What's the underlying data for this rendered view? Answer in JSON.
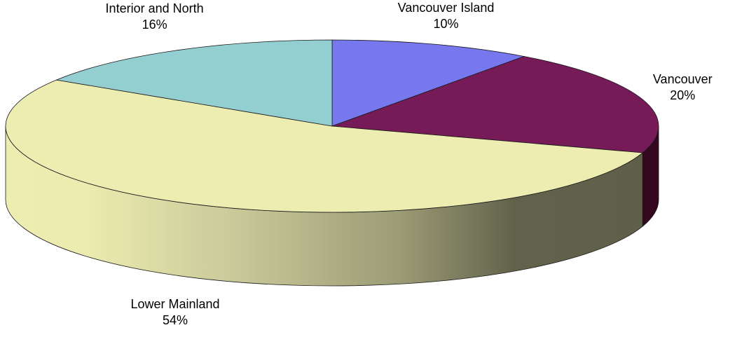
{
  "chart_data": {
    "type": "pie",
    "style": "3d-exploded-none",
    "categories": [
      "Vancouver Island",
      "Vancouver",
      "Lower Mainland",
      "Interior and North"
    ],
    "values": [
      10,
      20,
      54,
      16
    ],
    "labels": [
      "10%",
      "20%",
      "54%",
      "16%"
    ],
    "colors": [
      "#7878ee",
      "#761b57",
      "#ededb2",
      "#93cfd0"
    ],
    "side_colors": [
      "#3b3b77",
      "#34081f",
      "#ededb2",
      "#4a6a6a"
    ],
    "legend": "none",
    "data_labels": "category and percent"
  }
}
